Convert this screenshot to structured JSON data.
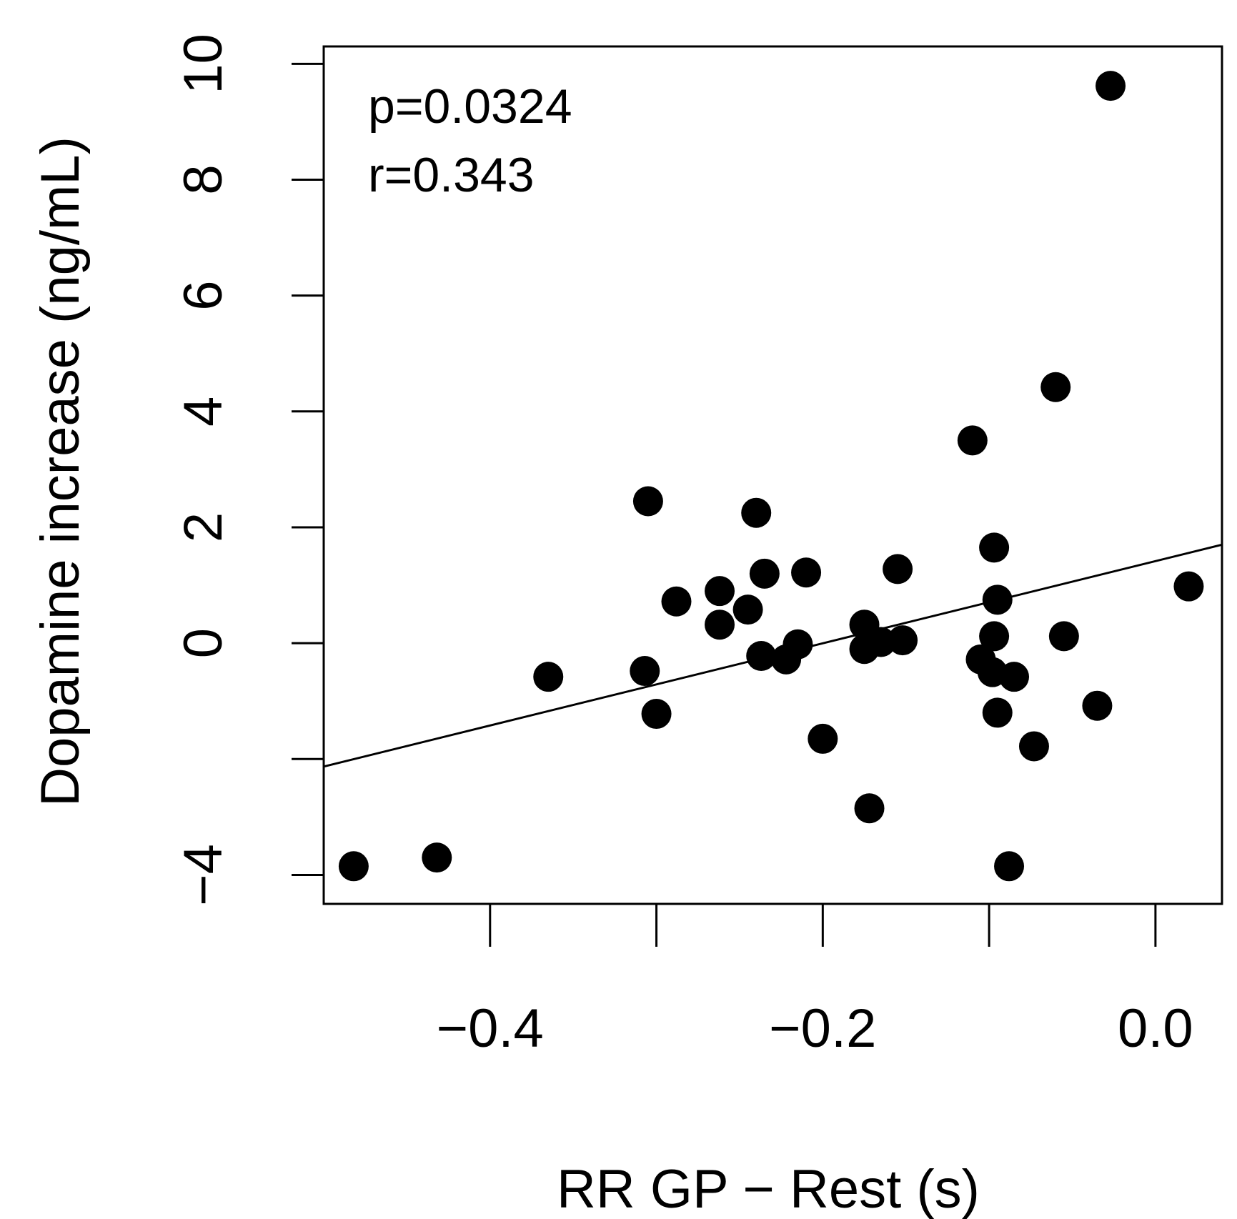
{
  "chart_data": {
    "type": "scatter",
    "xlabel": "RR GP − Rest (s)",
    "ylabel": "Dopamine increase (ng/mL)",
    "xlim": [
      -0.5,
      0.04
    ],
    "ylim": [
      -4.5,
      10.3
    ],
    "x_ticks": [
      -0.4,
      -0.3,
      -0.2,
      -0.1,
      0.0
    ],
    "x_tick_labels": [
      "−0.4",
      "",
      "−0.2",
      "",
      "0.0"
    ],
    "y_ticks": [
      -4,
      -2,
      0,
      2,
      4,
      6,
      8,
      10
    ],
    "y_tick_labels": [
      "−4",
      "",
      "0",
      "2",
      "4",
      "6",
      "8",
      "10"
    ],
    "annotations": [
      "p=0.0324",
      "r=0.343"
    ],
    "fit_line": {
      "x": [
        -0.5,
        0.04
      ],
      "y": [
        -2.13,
        1.7
      ]
    },
    "points": [
      {
        "x": -0.482,
        "y": -3.85
      },
      {
        "x": -0.432,
        "y": -3.7
      },
      {
        "x": -0.365,
        "y": -0.58
      },
      {
        "x": -0.305,
        "y": 2.45
      },
      {
        "x": -0.307,
        "y": -0.48
      },
      {
        "x": -0.3,
        "y": -1.22
      },
      {
        "x": -0.288,
        "y": 0.72
      },
      {
        "x": -0.262,
        "y": 0.9
      },
      {
        "x": -0.262,
        "y": 0.32
      },
      {
        "x": -0.245,
        "y": 0.58
      },
      {
        "x": -0.24,
        "y": 2.25
      },
      {
        "x": -0.235,
        "y": 1.2
      },
      {
        "x": -0.237,
        "y": -0.22
      },
      {
        "x": -0.222,
        "y": -0.28
      },
      {
        "x": -0.215,
        "y": -0.02
      },
      {
        "x": -0.21,
        "y": 1.22
      },
      {
        "x": -0.2,
        "y": -1.65
      },
      {
        "x": -0.175,
        "y": 0.32
      },
      {
        "x": -0.175,
        "y": -0.1
      },
      {
        "x": -0.165,
        "y": 0.02
      },
      {
        "x": -0.172,
        "y": -2.85
      },
      {
        "x": -0.152,
        "y": 0.05
      },
      {
        "x": -0.155,
        "y": 1.28
      },
      {
        "x": -0.11,
        "y": 3.5
      },
      {
        "x": -0.097,
        "y": 1.65
      },
      {
        "x": -0.095,
        "y": 0.75
      },
      {
        "x": -0.097,
        "y": 0.12
      },
      {
        "x": -0.105,
        "y": -0.28
      },
      {
        "x": -0.098,
        "y": -0.5
      },
      {
        "x": -0.085,
        "y": -0.58
      },
      {
        "x": -0.095,
        "y": -1.2
      },
      {
        "x": -0.073,
        "y": -1.78
      },
      {
        "x": -0.088,
        "y": -3.85
      },
      {
        "x": -0.06,
        "y": 4.42
      },
      {
        "x": -0.055,
        "y": 0.12
      },
      {
        "x": -0.035,
        "y": -1.08
      },
      {
        "x": -0.027,
        "y": 9.62
      },
      {
        "x": 0.02,
        "y": 0.98
      }
    ]
  }
}
